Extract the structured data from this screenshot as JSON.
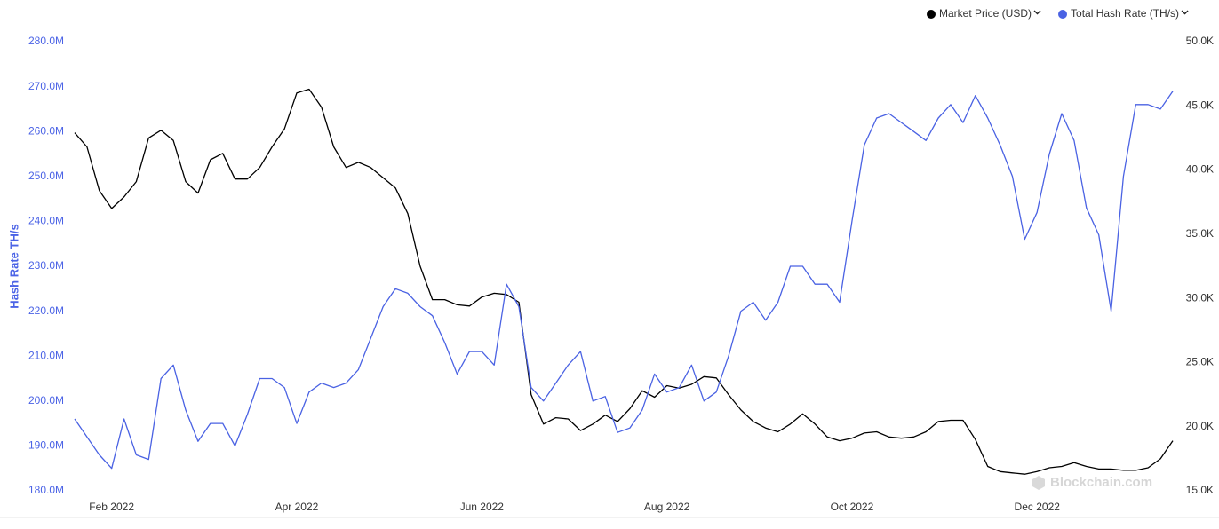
{
  "chart_data": {
    "type": "line",
    "y_label": "Hash Rate TH/s",
    "watermark": "Blockchain.com",
    "legend": "top-right",
    "categories": [
      null,
      null,
      null,
      "Feb 2022",
      null,
      null,
      null,
      null,
      null,
      null,
      null,
      null,
      null,
      null,
      null,
      null,
      null,
      null,
      "Apr 2022",
      null,
      null,
      null,
      null,
      null,
      null,
      null,
      null,
      null,
      null,
      null,
      null,
      null,
      null,
      "Jun 2022",
      null,
      null,
      null,
      null,
      null,
      null,
      null,
      null,
      null,
      null,
      null,
      null,
      null,
      null,
      "Aug 2022",
      null,
      null,
      null,
      null,
      null,
      null,
      null,
      null,
      null,
      null,
      null,
      null,
      null,
      null,
      "Oct 2022",
      null,
      null,
      null,
      null,
      null,
      null,
      null,
      null,
      null,
      null,
      null,
      null,
      null,
      null,
      "Dec 2022",
      null,
      null,
      null,
      null,
      null,
      null,
      null,
      null,
      null,
      null,
      null
    ],
    "series": [
      {
        "name": "Market Price (USD)",
        "color": "#000000",
        "axis": "y2",
        "values": [
          42.9,
          41.8,
          38.4,
          37.0,
          37.9,
          39.1,
          42.5,
          43.1,
          42.3,
          39.1,
          38.2,
          40.8,
          41.3,
          39.3,
          39.3,
          40.2,
          41.8,
          43.2,
          46.0,
          46.3,
          44.9,
          41.8,
          40.2,
          40.6,
          40.2,
          39.4,
          38.6,
          36.6,
          32.5,
          29.9,
          29.9,
          29.5,
          29.4,
          30.1,
          30.4,
          30.3,
          29.7,
          22.5,
          20.2,
          20.7,
          20.6,
          19.7,
          20.2,
          20.9,
          20.4,
          21.4,
          22.8,
          22.3,
          23.2,
          23.0,
          23.3,
          23.9,
          23.8,
          22.5,
          21.3,
          20.4,
          19.9,
          19.6,
          20.2,
          21.0,
          20.2,
          19.2,
          18.9,
          19.1,
          19.5,
          19.6,
          19.2,
          19.1,
          19.2,
          19.6,
          20.4,
          20.5,
          20.5,
          19.0,
          16.9,
          16.5,
          16.4,
          16.3,
          16.5,
          16.8,
          16.9,
          17.2,
          16.9,
          16.7,
          16.7,
          16.6,
          16.6,
          16.8,
          17.5,
          18.9
        ]
      },
      {
        "name": "Total Hash Rate (TH/s)",
        "color": "#4a62e3",
        "values": [
          196,
          192,
          188,
          185,
          196,
          188,
          187,
          205,
          208,
          198,
          191,
          195,
          195,
          190,
          197,
          205,
          205,
          203,
          195,
          202,
          204,
          203,
          204,
          207,
          214,
          221,
          225,
          224,
          221,
          219,
          213,
          206,
          211,
          211,
          208,
          226,
          221,
          203,
          200,
          204,
          208,
          211,
          200,
          201,
          193,
          194,
          198,
          206,
          202,
          203,
          208,
          200,
          202,
          210,
          220,
          222,
          218,
          222,
          230,
          230,
          226,
          226,
          222,
          240,
          257,
          263,
          264,
          262,
          260,
          258,
          263,
          266,
          262,
          268,
          263,
          257,
          250,
          236,
          242,
          255,
          264,
          258,
          243,
          237,
          220,
          250,
          266,
          266,
          265,
          269
        ]
      }
    ],
    "ylim": [
      180,
      280
    ],
    "yticks": [
      {
        "value": 180,
        "label": "180.0M"
      },
      {
        "value": 190,
        "label": "190.0M"
      },
      {
        "value": 200,
        "label": "200.0M"
      },
      {
        "value": 210,
        "label": "210.0M"
      },
      {
        "value": 220,
        "label": "220.0M"
      },
      {
        "value": 230,
        "label": "230.0M"
      },
      {
        "value": 240,
        "label": "240.0M"
      },
      {
        "value": 250,
        "label": "250.0M"
      },
      {
        "value": 260,
        "label": "260.0M"
      },
      {
        "value": 270,
        "label": "270.0M"
      },
      {
        "value": 280,
        "label": "280.0M"
      }
    ],
    "y2lim": [
      15,
      50
    ],
    "y2ticks": [
      {
        "value": 15,
        "label": "15.0K"
      },
      {
        "value": 20,
        "label": "20.0K"
      },
      {
        "value": 25,
        "label": "25.0K"
      },
      {
        "value": 30,
        "label": "30.0K"
      },
      {
        "value": 35,
        "label": "35.0K"
      },
      {
        "value": 40,
        "label": "40.0K"
      },
      {
        "value": 45,
        "label": "45.0K"
      },
      {
        "value": 50,
        "label": "50.0K"
      }
    ]
  }
}
